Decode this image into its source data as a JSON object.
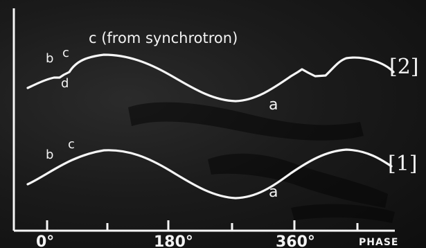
{
  "diagram": {
    "annotation_top": "c (from synchrotron)",
    "trace_2": {
      "label": "[2]",
      "points": {
        "b": "b",
        "c": "c",
        "d": "d",
        "a": "a"
      }
    },
    "trace_1": {
      "label": "[1]",
      "points": {
        "b": "b",
        "c": "c",
        "a": "a"
      }
    },
    "axis": {
      "ticks": [
        "0°",
        "180°",
        "360°"
      ],
      "label": "PHASE"
    }
  }
}
